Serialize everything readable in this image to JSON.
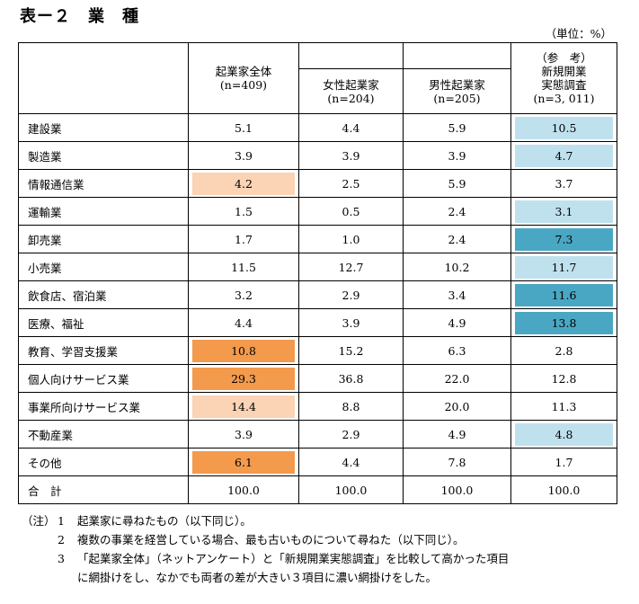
{
  "title": "表ー２　業　種",
  "unit": "（単位：%）",
  "headers": {
    "total": [
      "起業家全体",
      "(n=409)"
    ],
    "female": [
      "女性起業家",
      "(n=204)"
    ],
    "male": [
      "男性起業家",
      "(n=205)"
    ],
    "reference": [
      "（参　考）",
      "新規開業",
      "実態調査",
      "(n=3, 011)"
    ]
  },
  "rows": [
    {
      "label": "建設業",
      "v": [
        "5.1",
        "4.4",
        "5.9",
        "10.5"
      ],
      "hl": [
        "",
        "",
        "",
        "light-blue"
      ]
    },
    {
      "label": "製造業",
      "v": [
        "3.9",
        "3.9",
        "3.9",
        "4.7"
      ],
      "hl": [
        "",
        "",
        "",
        "light-blue"
      ]
    },
    {
      "label": "情報通信業",
      "v": [
        "4.2",
        "2.5",
        "5.9",
        "3.7"
      ],
      "hl": [
        "light-orange",
        "",
        "",
        ""
      ]
    },
    {
      "label": "運輸業",
      "v": [
        "1.5",
        "0.5",
        "2.4",
        "3.1"
      ],
      "hl": [
        "",
        "",
        "",
        "light-blue"
      ]
    },
    {
      "label": "卸売業",
      "v": [
        "1.7",
        "1.0",
        "2.4",
        "7.3"
      ],
      "hl": [
        "",
        "",
        "",
        "blue"
      ]
    },
    {
      "label": "小売業",
      "v": [
        "11.5",
        "12.7",
        "10.2",
        "11.7"
      ],
      "hl": [
        "",
        "",
        "",
        "light-blue"
      ]
    },
    {
      "label": "飲食店、宿泊業",
      "v": [
        "3.2",
        "2.9",
        "3.4",
        "11.6"
      ],
      "hl": [
        "",
        "",
        "",
        "blue"
      ]
    },
    {
      "label": "医療、福祉",
      "v": [
        "4.4",
        "3.9",
        "4.9",
        "13.8"
      ],
      "hl": [
        "",
        "",
        "",
        "blue"
      ]
    },
    {
      "label": "教育、学習支援業",
      "v": [
        "10.8",
        "15.2",
        "6.3",
        "2.8"
      ],
      "hl": [
        "orange",
        "",
        "",
        ""
      ]
    },
    {
      "label": "個人向けサービス業",
      "v": [
        "29.3",
        "36.8",
        "22.0",
        "12.8"
      ],
      "hl": [
        "orange",
        "",
        "",
        ""
      ]
    },
    {
      "label": "事業所向けサービス業",
      "v": [
        "14.4",
        "8.8",
        "20.0",
        "11.3"
      ],
      "hl": [
        "light-orange",
        "",
        "",
        ""
      ]
    },
    {
      "label": "不動産業",
      "v": [
        "3.9",
        "2.9",
        "4.9",
        "4.8"
      ],
      "hl": [
        "",
        "",
        "",
        "light-blue"
      ]
    },
    {
      "label": "その他",
      "v": [
        "6.1",
        "4.4",
        "7.8",
        "1.7"
      ],
      "hl": [
        "orange",
        "",
        "",
        ""
      ]
    },
    {
      "label": "合　計",
      "v": [
        "100.0",
        "100.0",
        "100.0",
        "100.0"
      ],
      "hl": [
        "",
        "",
        "",
        ""
      ]
    }
  ],
  "notes": {
    "lead": "（注）",
    "items": [
      {
        "num": "1",
        "text": "起業家に尋ねたもの（以下同じ）。"
      },
      {
        "num": "2",
        "text": "複数の事業を経営している場合、最も古いものについて尋ねた（以下同じ）。"
      },
      {
        "num": "3",
        "text": "「起業家全体」（ネットアンケート）と「新規開業実態調査」を比較して高かった項目"
      }
    ],
    "continuation": "に網掛けをし、なかでも両者の差が大きい３項目に濃い網掛けをした。"
  }
}
